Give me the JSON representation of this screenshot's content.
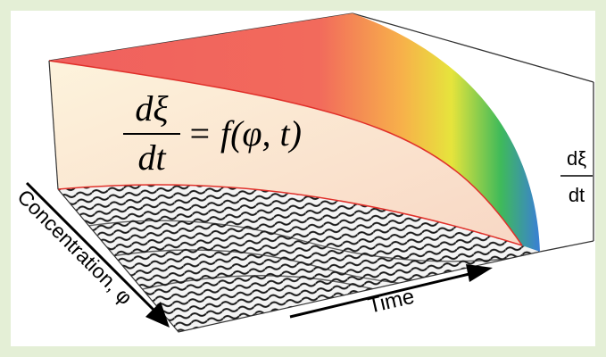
{
  "equation": {
    "numerator": "dξ",
    "denominator": "dt",
    "rhs": "= f(φ, t)"
  },
  "axes": {
    "z": {
      "numerator": "dξ",
      "denominator": "dt"
    },
    "x": "Time",
    "y": "Concentration, φ"
  }
}
